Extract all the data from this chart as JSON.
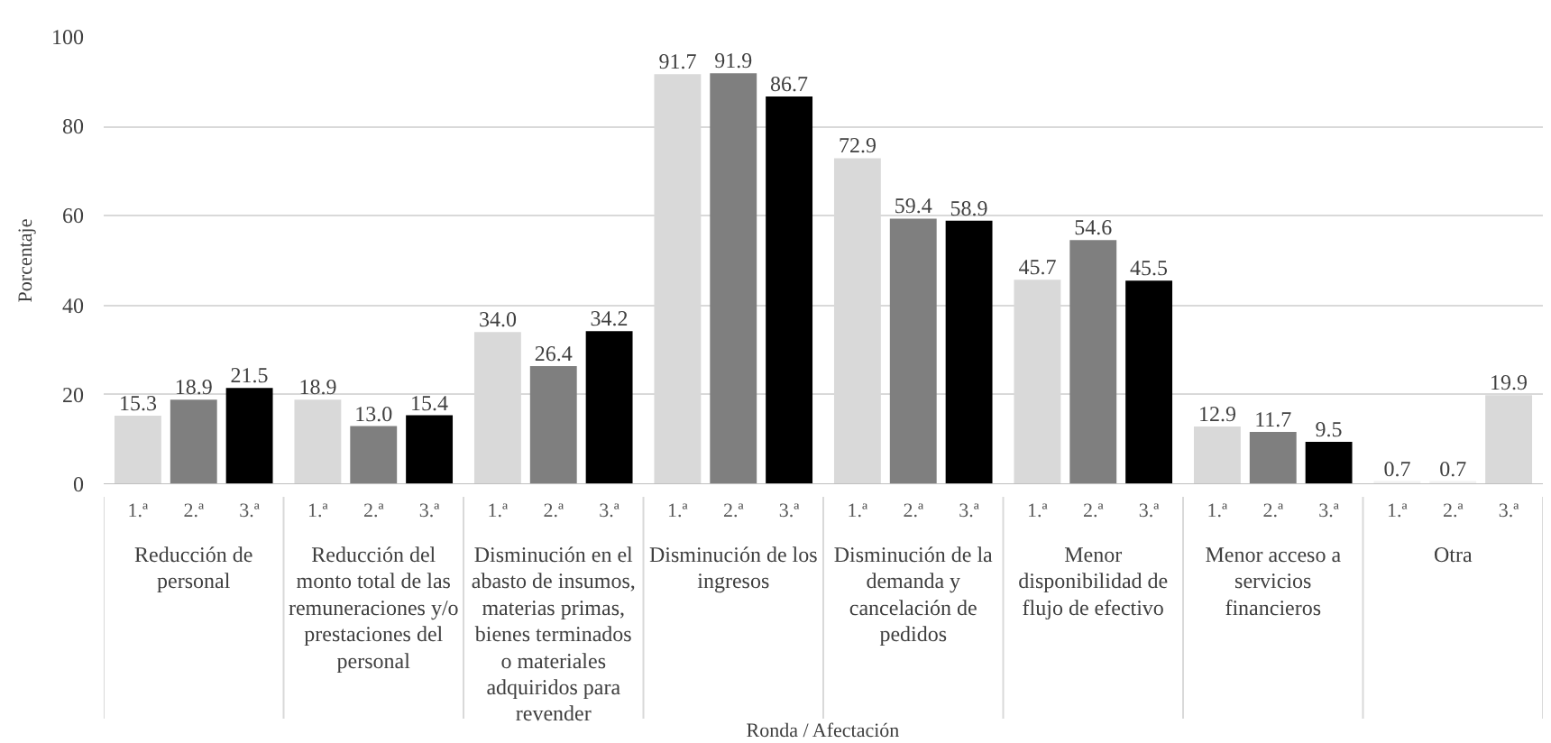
{
  "chart_data": {
    "type": "bar",
    "xlabel": "Ronda / Afectación",
    "ylabel": "Porcentaje",
    "categories": [
      "Reducción de personal",
      "Reducción del monto total de las remuneraciones y/o prestaciones del personal",
      "Disminución en el abasto de insumos, materias primas, bienes terminados o materiales adquiridos para revender",
      "Disminución de los ingresos",
      "Disminución de la demanda y cancelación de pedidos",
      "Menor disponibilidad de flujo de efectivo",
      "Menor acceso a servicios financieros",
      "Otra"
    ],
    "series": [
      {
        "name": "1.ª",
        "color": "#d9d9d9",
        "values": [
          15.3,
          18.9,
          34.0,
          91.7,
          72.9,
          45.7,
          12.9,
          0.7
        ],
        "value_labels": [
          "15.3",
          "18.9",
          "34.0",
          "91.7",
          "72.9",
          "45.7",
          "12.9",
          "0.7"
        ],
        "colors": [
          null,
          null,
          null,
          null,
          null,
          null,
          null,
          "#f2f2f2"
        ]
      },
      {
        "name": "2.ª",
        "color": "#7f7f7f",
        "values": [
          18.9,
          13.0,
          26.4,
          91.9,
          59.4,
          54.6,
          11.7,
          0.7
        ],
        "value_labels": [
          "18.9",
          "13.0",
          "26.4",
          "91.9",
          "59.4",
          "54.6",
          "11.7",
          "0.7"
        ],
        "colors": [
          null,
          null,
          null,
          null,
          null,
          null,
          null,
          "#f2f2f2"
        ]
      },
      {
        "name": "3.ª",
        "color": "#000000",
        "values": [
          21.5,
          15.4,
          34.2,
          86.7,
          58.9,
          45.5,
          9.5,
          19.9
        ],
        "value_labels": [
          "21.5",
          "15.4",
          "34.2",
          "86.7",
          "58.9",
          "45.5",
          "9.5",
          "19.9"
        ],
        "colors": [
          null,
          null,
          null,
          null,
          null,
          null,
          null,
          "#d9d9d9"
        ]
      }
    ],
    "ylim": [
      0,
      100
    ],
    "yticks": [
      0,
      20,
      40,
      60,
      80,
      100
    ],
    "grid": "y"
  }
}
